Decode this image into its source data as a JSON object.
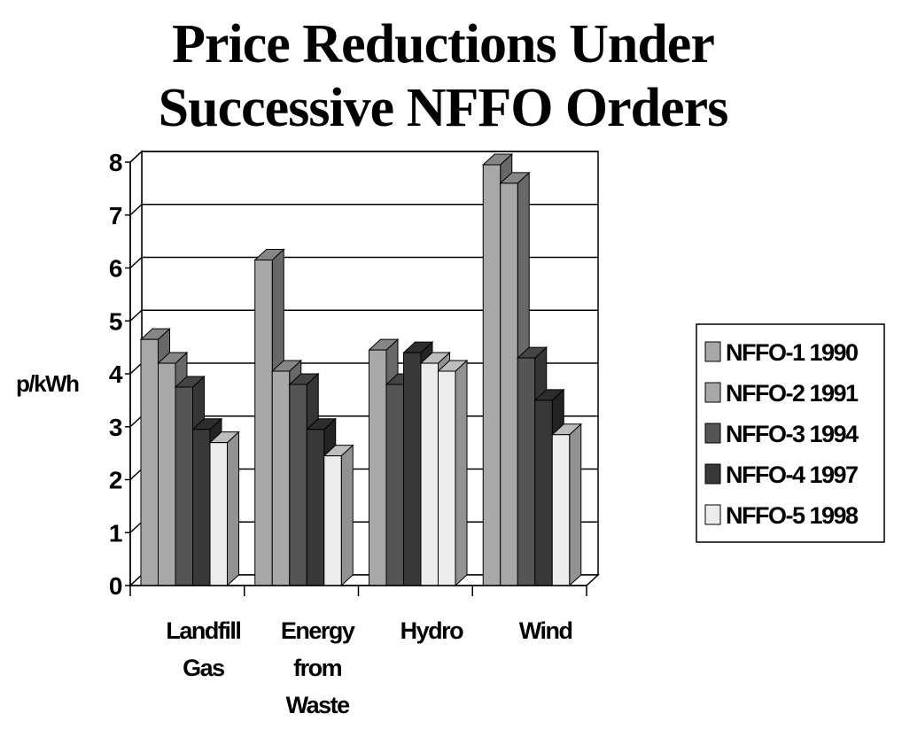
{
  "chart_data": {
    "type": "bar",
    "title": "Price Reductions Under Successive NFFO Orders",
    "title_lines": [
      "Price Reductions Under",
      "Successive NFFO Orders"
    ],
    "ylabel": "p/kWh",
    "xlabel": "",
    "ylim": [
      0,
      8
    ],
    "yticks": [
      "0",
      "1",
      "2",
      "3",
      "4",
      "5",
      "6",
      "7",
      "8"
    ],
    "grid": true,
    "legend_position": "right",
    "categories": [
      [
        "Landfill",
        "Gas"
      ],
      [
        "Energy",
        "from",
        "Waste"
      ],
      [
        "Hydro"
      ],
      [
        "Wind"
      ]
    ],
    "series": [
      {
        "name": "NFFO-1 1990",
        "color": "#a8a8a8",
        "values": [
          4.65,
          6.15,
          null,
          7.95
        ]
      },
      {
        "name": "NFFO-2 1991",
        "color": "#a8a8a8",
        "values": [
          4.2,
          4.05,
          4.45,
          7.6
        ]
      },
      {
        "name": "NFFO-3 1994",
        "color": "#555555",
        "values": [
          3.75,
          3.8,
          3.8,
          4.3
        ]
      },
      {
        "name": "NFFO-4 1997",
        "color": "#383838",
        "values": [
          2.95,
          2.95,
          4.4,
          3.5
        ]
      },
      {
        "name": "NFFO-5 1998",
        "color": "#ececec",
        "values": [
          2.7,
          2.45,
          4.2,
          2.85
        ]
      },
      {
        "name": "",
        "color": "#ececec",
        "values": [
          null,
          null,
          4.05,
          null
        ]
      }
    ]
  }
}
